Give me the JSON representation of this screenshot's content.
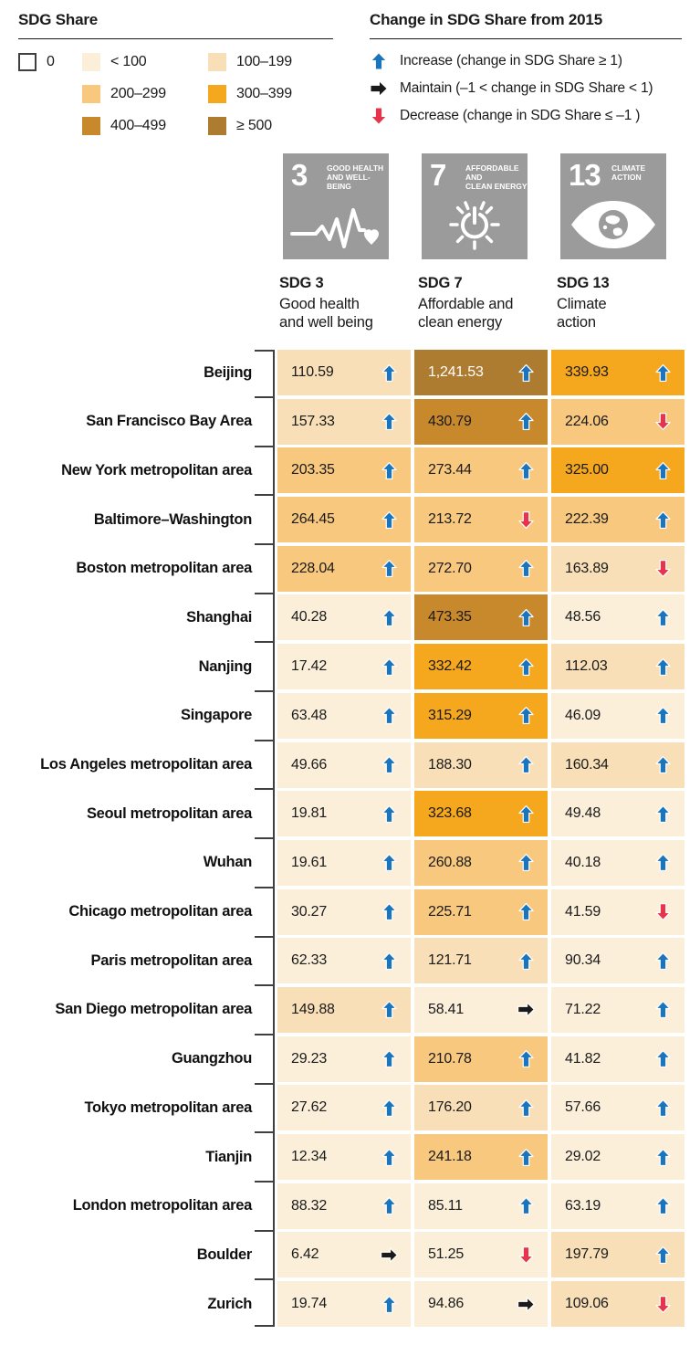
{
  "legend_share": {
    "title": "SDG Share",
    "buckets": [
      {
        "label": "0",
        "color": "#FFFFFF"
      },
      {
        "label": "< 100",
        "color": "#FBEFDA"
      },
      {
        "label": "100–199",
        "color": "#F8DFB7"
      },
      {
        "label": "200–299",
        "color": "#F7C87E"
      },
      {
        "label": "300–399",
        "color": "#F5A71E"
      },
      {
        "label": "400–499",
        "color": "#C8892D"
      },
      {
        "label": "≥ 500",
        "color": "#AD7C31"
      }
    ]
  },
  "legend_change": {
    "title": "Change in SDG Share from 2015",
    "items": [
      {
        "trend": "increase",
        "color": "#1B75BC",
        "label": "Increase (change in SDG Share ≥ 1)"
      },
      {
        "trend": "maintain",
        "color": "#1A1A1A",
        "label": "Maintain (–1 < change in SDG Share < 1)"
      },
      {
        "trend": "decrease",
        "color": "#E5344B",
        "label": "Decrease (change in SDG Share ≤ –1 )"
      }
    ]
  },
  "sdg_icons": [
    {
      "number": "3",
      "title_line1": "GOOD HEALTH",
      "title_line2": "AND WELL-BEING",
      "bg": "#9B9B9B"
    },
    {
      "number": "7",
      "title_line1": "AFFORDABLE AND",
      "title_line2": "CLEAN ENERGY",
      "bg": "#9B9B9B"
    },
    {
      "number": "13",
      "title_line1": "CLIMATE",
      "title_line2": "ACTION",
      "bg": "#9B9B9B"
    }
  ],
  "column_headers": [
    {
      "id": "SDG 3",
      "name_line1": "Good health",
      "name_line2": "and well being"
    },
    {
      "id": "SDG 7",
      "name_line1": "Affordable and",
      "name_line2": "clean energy"
    },
    {
      "id": "SDG 13",
      "name_line1": "Climate",
      "name_line2": "action"
    }
  ],
  "trend_colors": {
    "increase": "#1B75BC",
    "maintain": "#1A1A1A",
    "decrease": "#E5344B"
  },
  "value_text_colors": {
    "default": "#1A1A1A",
    "on_dark": "#FFFFFF"
  },
  "chart_data": {
    "type": "heatmap",
    "title": "SDG Share",
    "subtitle": "Change in SDG Share from 2015",
    "columns": [
      "SDG 3 Good health and well being",
      "SDG 7 Affordable and clean energy",
      "SDG 13 Climate action"
    ],
    "color_bins": [
      "0",
      "< 100",
      "100–199",
      "200–299",
      "300–399",
      "400–499",
      "≥ 500"
    ],
    "rows": [
      {
        "label": "Beijing",
        "cells": [
          {
            "value": 110.59,
            "display": "110.59",
            "trend": "increase"
          },
          {
            "value": 1241.53,
            "display": "1,241.53",
            "trend": "increase"
          },
          {
            "value": 339.93,
            "display": "339.93",
            "trend": "increase"
          }
        ]
      },
      {
        "label": "San Francisco Bay Area",
        "cells": [
          {
            "value": 157.33,
            "display": "157.33",
            "trend": "increase"
          },
          {
            "value": 430.79,
            "display": "430.79",
            "trend": "increase"
          },
          {
            "value": 224.06,
            "display": "224.06",
            "trend": "decrease"
          }
        ]
      },
      {
        "label": "New York metropolitan area",
        "cells": [
          {
            "value": 203.35,
            "display": "203.35",
            "trend": "increase"
          },
          {
            "value": 273.44,
            "display": "273.44",
            "trend": "increase"
          },
          {
            "value": 325.0,
            "display": "325.00",
            "trend": "increase"
          }
        ]
      },
      {
        "label": "Baltimore–Washington",
        "cells": [
          {
            "value": 264.45,
            "display": "264.45",
            "trend": "increase"
          },
          {
            "value": 213.72,
            "display": "213.72",
            "trend": "decrease"
          },
          {
            "value": 222.39,
            "display": "222.39",
            "trend": "increase"
          }
        ]
      },
      {
        "label": "Boston metropolitan area",
        "cells": [
          {
            "value": 228.04,
            "display": "228.04",
            "trend": "increase"
          },
          {
            "value": 272.7,
            "display": "272.70",
            "trend": "increase"
          },
          {
            "value": 163.89,
            "display": "163.89",
            "trend": "decrease"
          }
        ]
      },
      {
        "label": "Shanghai",
        "cells": [
          {
            "value": 40.28,
            "display": "40.28",
            "trend": "increase"
          },
          {
            "value": 473.35,
            "display": "473.35",
            "trend": "increase"
          },
          {
            "value": 48.56,
            "display": "48.56",
            "trend": "increase"
          }
        ]
      },
      {
        "label": "Nanjing",
        "cells": [
          {
            "value": 17.42,
            "display": "17.42",
            "trend": "increase"
          },
          {
            "value": 332.42,
            "display": "332.42",
            "trend": "increase"
          },
          {
            "value": 112.03,
            "display": "112.03",
            "trend": "increase"
          }
        ]
      },
      {
        "label": "Singapore",
        "cells": [
          {
            "value": 63.48,
            "display": "63.48",
            "trend": "increase"
          },
          {
            "value": 315.29,
            "display": "315.29",
            "trend": "increase"
          },
          {
            "value": 46.09,
            "display": "46.09",
            "trend": "increase"
          }
        ]
      },
      {
        "label": "Los Angeles metropolitan area",
        "cells": [
          {
            "value": 49.66,
            "display": "49.66",
            "trend": "increase"
          },
          {
            "value": 188.3,
            "display": "188.30",
            "trend": "increase"
          },
          {
            "value": 160.34,
            "display": "160.34",
            "trend": "increase"
          }
        ]
      },
      {
        "label": "Seoul metropolitan area",
        "cells": [
          {
            "value": 19.81,
            "display": "19.81",
            "trend": "increase"
          },
          {
            "value": 323.68,
            "display": "323.68",
            "trend": "increase"
          },
          {
            "value": 49.48,
            "display": "49.48",
            "trend": "increase"
          }
        ]
      },
      {
        "label": "Wuhan",
        "cells": [
          {
            "value": 19.61,
            "display": "19.61",
            "trend": "increase"
          },
          {
            "value": 260.88,
            "display": "260.88",
            "trend": "increase"
          },
          {
            "value": 40.18,
            "display": "40.18",
            "trend": "increase"
          }
        ]
      },
      {
        "label": "Chicago metropolitan area",
        "cells": [
          {
            "value": 30.27,
            "display": "30.27",
            "trend": "increase"
          },
          {
            "value": 225.71,
            "display": "225.71",
            "trend": "increase"
          },
          {
            "value": 41.59,
            "display": "41.59",
            "trend": "decrease"
          }
        ]
      },
      {
        "label": "Paris metropolitan area",
        "cells": [
          {
            "value": 62.33,
            "display": "62.33",
            "trend": "increase"
          },
          {
            "value": 121.71,
            "display": "121.71",
            "trend": "increase"
          },
          {
            "value": 90.34,
            "display": "90.34",
            "trend": "increase"
          }
        ]
      },
      {
        "label": "San Diego metropolitan area",
        "cells": [
          {
            "value": 149.88,
            "display": "149.88",
            "trend": "increase"
          },
          {
            "value": 58.41,
            "display": "58.41",
            "trend": "maintain"
          },
          {
            "value": 71.22,
            "display": "71.22",
            "trend": "increase"
          }
        ]
      },
      {
        "label": "Guangzhou",
        "cells": [
          {
            "value": 29.23,
            "display": "29.23",
            "trend": "increase"
          },
          {
            "value": 210.78,
            "display": "210.78",
            "trend": "increase"
          },
          {
            "value": 41.82,
            "display": "41.82",
            "trend": "increase"
          }
        ]
      },
      {
        "label": "Tokyo metropolitan area",
        "cells": [
          {
            "value": 27.62,
            "display": "27.62",
            "trend": "increase"
          },
          {
            "value": 176.2,
            "display": "176.20",
            "trend": "increase"
          },
          {
            "value": 57.66,
            "display": "57.66",
            "trend": "increase"
          }
        ]
      },
      {
        "label": "Tianjin",
        "cells": [
          {
            "value": 12.34,
            "display": "12.34",
            "trend": "increase"
          },
          {
            "value": 241.18,
            "display": "241.18",
            "trend": "increase"
          },
          {
            "value": 29.02,
            "display": "29.02",
            "trend": "increase"
          }
        ]
      },
      {
        "label": "London metropolitan area",
        "cells": [
          {
            "value": 88.32,
            "display": "88.32",
            "trend": "increase"
          },
          {
            "value": 85.11,
            "display": "85.11",
            "trend": "increase"
          },
          {
            "value": 63.19,
            "display": "63.19",
            "trend": "increase"
          }
        ]
      },
      {
        "label": "Boulder",
        "cells": [
          {
            "value": 6.42,
            "display": "6.42",
            "trend": "maintain"
          },
          {
            "value": 51.25,
            "display": "51.25",
            "trend": "decrease"
          },
          {
            "value": 197.79,
            "display": "197.79",
            "trend": "increase"
          }
        ]
      },
      {
        "label": "Zurich",
        "cells": [
          {
            "value": 19.74,
            "display": "19.74",
            "trend": "increase"
          },
          {
            "value": 94.86,
            "display": "94.86",
            "trend": "maintain"
          },
          {
            "value": 109.06,
            "display": "109.06",
            "trend": "decrease"
          }
        ]
      }
    ]
  }
}
